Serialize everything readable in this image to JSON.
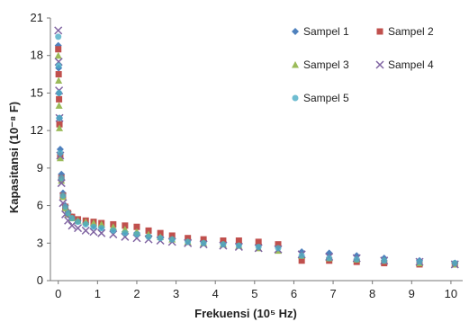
{
  "chart_data": {
    "type": "scatter",
    "title": "",
    "xlabel": "Frekuensi (10⁵ Hz)",
    "ylabel": "Kapasitansi (10⁻⁸ F)",
    "xlim": [
      -0.2,
      10.3
    ],
    "ylim": [
      0,
      21
    ],
    "xticks": [
      "0",
      "1",
      "2",
      "3",
      "4",
      "5",
      "6",
      "7",
      "8",
      "9",
      "10"
    ],
    "yticks": [
      "0",
      "3",
      "6",
      "9",
      "12",
      "15",
      "18",
      "21"
    ],
    "grid": false,
    "legend": "top-right",
    "series": [
      {
        "name": "Sampel 1",
        "color": "#4f81bd",
        "marker": "diamond",
        "points": [
          [
            0,
            18.8
          ],
          [
            0.01,
            17
          ],
          [
            0.02,
            15
          ],
          [
            0.03,
            13
          ],
          [
            0.05,
            10.5
          ],
          [
            0.08,
            8.5
          ],
          [
            0.12,
            7
          ],
          [
            0.18,
            6
          ],
          [
            0.25,
            5.5
          ],
          [
            0.35,
            5.1
          ],
          [
            0.5,
            4.8
          ],
          [
            0.7,
            4.6
          ],
          [
            0.9,
            4.4
          ],
          [
            1.1,
            4.3
          ],
          [
            1.4,
            4.1
          ],
          [
            1.7,
            3.9
          ],
          [
            2.0,
            3.8
          ],
          [
            2.3,
            3.6
          ],
          [
            2.6,
            3.5
          ],
          [
            2.9,
            3.4
          ],
          [
            3.3,
            3.3
          ],
          [
            3.7,
            3.2
          ],
          [
            4.2,
            3.1
          ],
          [
            4.6,
            3.0
          ],
          [
            5.1,
            2.9
          ],
          [
            5.6,
            2.8
          ],
          [
            6.2,
            2.3
          ],
          [
            6.9,
            2.2
          ],
          [
            7.6,
            2.0
          ],
          [
            8.3,
            1.8
          ],
          [
            9.2,
            1.6
          ],
          [
            10.1,
            1.4
          ]
        ]
      },
      {
        "name": "Sampel 2",
        "color": "#c0504d",
        "marker": "square",
        "points": [
          [
            0,
            18.5
          ],
          [
            0.01,
            16.5
          ],
          [
            0.02,
            14.5
          ],
          [
            0.03,
            12.5
          ],
          [
            0.05,
            10
          ],
          [
            0.08,
            8.2
          ],
          [
            0.12,
            6.8
          ],
          [
            0.18,
            5.9
          ],
          [
            0.25,
            5.4
          ],
          [
            0.35,
            5.1
          ],
          [
            0.5,
            4.9
          ],
          [
            0.7,
            4.8
          ],
          [
            0.9,
            4.7
          ],
          [
            1.1,
            4.6
          ],
          [
            1.4,
            4.5
          ],
          [
            1.7,
            4.4
          ],
          [
            2.0,
            4.3
          ],
          [
            2.3,
            4.0
          ],
          [
            2.6,
            3.8
          ],
          [
            2.9,
            3.6
          ],
          [
            3.3,
            3.4
          ],
          [
            3.7,
            3.3
          ],
          [
            4.2,
            3.2
          ],
          [
            4.6,
            3.2
          ],
          [
            5.1,
            3.1
          ],
          [
            5.6,
            2.9
          ],
          [
            6.2,
            1.6
          ],
          [
            6.9,
            1.6
          ],
          [
            7.6,
            1.5
          ],
          [
            8.3,
            1.4
          ],
          [
            9.2,
            1.3
          ],
          [
            10.1,
            1.3
          ]
        ]
      },
      {
        "name": "Sampel 3",
        "color": "#9bbb59",
        "marker": "triangle",
        "points": [
          [
            0,
            18
          ],
          [
            0.01,
            16
          ],
          [
            0.02,
            14
          ],
          [
            0.03,
            12.2
          ],
          [
            0.05,
            9.8
          ],
          [
            0.08,
            8
          ],
          [
            0.12,
            6.7
          ],
          [
            0.18,
            5.8
          ],
          [
            0.25,
            5.3
          ],
          [
            0.35,
            5.0
          ],
          [
            0.5,
            4.8
          ],
          [
            0.7,
            4.7
          ],
          [
            0.9,
            4.6
          ],
          [
            1.1,
            4.5
          ],
          [
            1.4,
            4.3
          ],
          [
            1.7,
            4.1
          ],
          [
            2.0,
            3.9
          ],
          [
            2.3,
            3.7
          ],
          [
            2.6,
            3.5
          ],
          [
            2.9,
            3.3
          ],
          [
            3.3,
            3.1
          ],
          [
            3.7,
            3.0
          ],
          [
            4.2,
            2.9
          ],
          [
            4.6,
            2.8
          ],
          [
            5.1,
            2.6
          ],
          [
            5.6,
            2.4
          ],
          [
            6.2,
            2.0
          ],
          [
            6.9,
            1.8
          ],
          [
            7.6,
            1.7
          ],
          [
            8.3,
            1.6
          ],
          [
            9.2,
            1.4
          ],
          [
            10.1,
            1.3
          ]
        ]
      },
      {
        "name": "Sampel 4",
        "color": "#8064a2",
        "marker": "x",
        "points": [
          [
            0,
            20
          ],
          [
            0.01,
            17.5
          ],
          [
            0.02,
            15.2
          ],
          [
            0.03,
            13
          ],
          [
            0.05,
            10
          ],
          [
            0.08,
            7.8
          ],
          [
            0.12,
            6.2
          ],
          [
            0.18,
            5.3
          ],
          [
            0.25,
            4.8
          ],
          [
            0.35,
            4.4
          ],
          [
            0.5,
            4.2
          ],
          [
            0.7,
            4.0
          ],
          [
            0.9,
            3.9
          ],
          [
            1.1,
            3.8
          ],
          [
            1.4,
            3.7
          ],
          [
            1.7,
            3.5
          ],
          [
            2.0,
            3.4
          ],
          [
            2.3,
            3.3
          ],
          [
            2.6,
            3.2
          ],
          [
            2.9,
            3.1
          ],
          [
            3.3,
            3.0
          ],
          [
            3.7,
            2.9
          ],
          [
            4.2,
            2.8
          ],
          [
            4.6,
            2.7
          ],
          [
            5.1,
            2.6
          ],
          [
            5.6,
            2.5
          ],
          [
            6.2,
            2.1
          ],
          [
            6.9,
            1.9
          ],
          [
            7.6,
            1.8
          ],
          [
            8.3,
            1.6
          ],
          [
            9.2,
            1.5
          ],
          [
            10.1,
            1.3
          ]
        ]
      },
      {
        "name": "Sampel 5",
        "color": "#4bacc6",
        "marker": "circle",
        "points": [
          [
            0,
            19.5
          ],
          [
            0.01,
            17.2
          ],
          [
            0.02,
            15
          ],
          [
            0.03,
            13
          ],
          [
            0.05,
            10.2
          ],
          [
            0.08,
            8.2
          ],
          [
            0.12,
            6.8
          ],
          [
            0.18,
            5.9
          ],
          [
            0.25,
            5.4
          ],
          [
            0.35,
            5.0
          ],
          [
            0.5,
            4.7
          ],
          [
            0.7,
            4.5
          ],
          [
            0.9,
            4.3
          ],
          [
            1.1,
            4.2
          ],
          [
            1.4,
            4.0
          ],
          [
            1.7,
            3.8
          ],
          [
            2.0,
            3.7
          ],
          [
            2.3,
            3.5
          ],
          [
            2.6,
            3.4
          ],
          [
            2.9,
            3.3
          ],
          [
            3.3,
            3.1
          ],
          [
            3.7,
            3.0
          ],
          [
            4.2,
            2.9
          ],
          [
            4.6,
            2.8
          ],
          [
            5.1,
            2.7
          ],
          [
            5.6,
            2.6
          ],
          [
            6.2,
            2.0
          ],
          [
            6.9,
            1.8
          ],
          [
            7.6,
            1.7
          ],
          [
            8.3,
            1.6
          ],
          [
            9.2,
            1.5
          ],
          [
            10.1,
            1.4
          ]
        ]
      }
    ]
  }
}
